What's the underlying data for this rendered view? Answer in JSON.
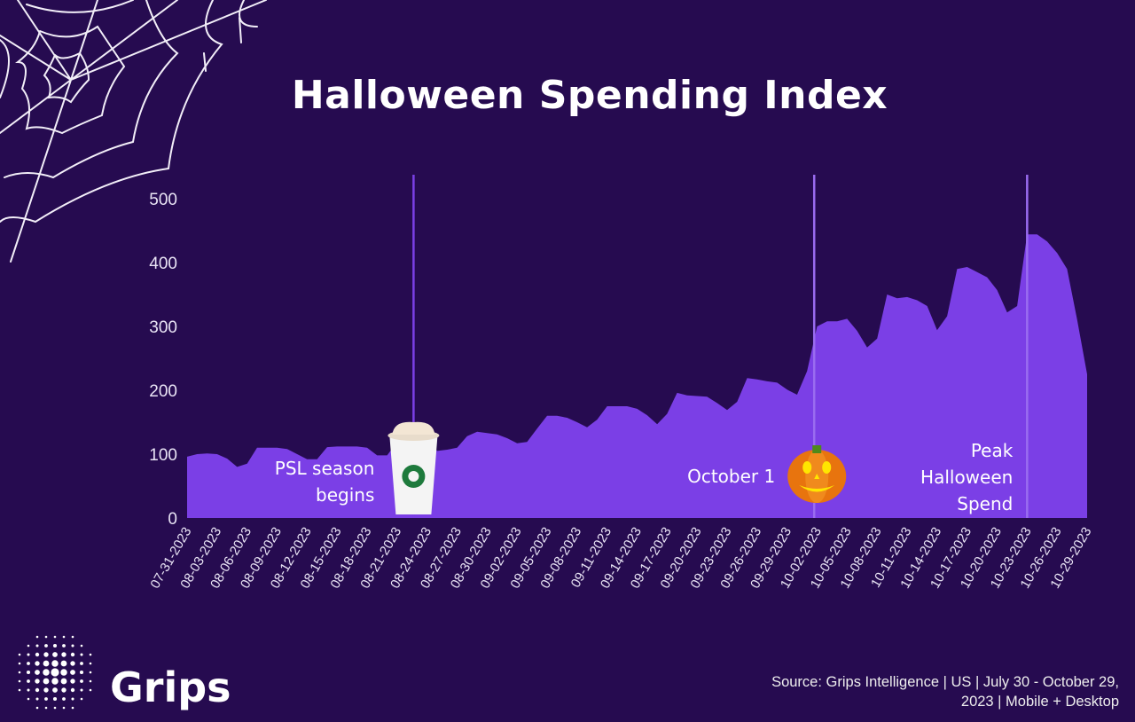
{
  "title": "Halloween Spending Index",
  "brand": "Grips",
  "source": "Source: Grips Intelligence | US | July 30 - October 29, 2023 | Mobile + Desktop",
  "colors": {
    "background": "#260b50",
    "area": "#7b3fe6",
    "marker_line": "#9a6cf0",
    "text": "#ffffff"
  },
  "chart_data": {
    "type": "area",
    "title": "Halloween Spending Index",
    "xlabel": "",
    "ylabel": "",
    "ylim": [
      0,
      540
    ],
    "yticks": [
      0,
      100,
      200,
      300,
      400,
      500
    ],
    "grid": false,
    "x": [
      "07-31-2023",
      "08-01-2023",
      "08-02-2023",
      "08-03-2023",
      "08-04-2023",
      "08-05-2023",
      "08-06-2023",
      "08-07-2023",
      "08-08-2023",
      "08-09-2023",
      "08-10-2023",
      "08-11-2023",
      "08-12-2023",
      "08-13-2023",
      "08-14-2023",
      "08-15-2023",
      "08-16-2023",
      "08-17-2023",
      "08-18-2023",
      "08-19-2023",
      "08-20-2023",
      "08-21-2023",
      "08-22-2023",
      "08-23-2023",
      "08-24-2023",
      "08-25-2023",
      "08-26-2023",
      "08-27-2023",
      "08-28-2023",
      "08-29-2023",
      "08-30-2023",
      "08-31-2023",
      "09-01-2023",
      "09-02-2023",
      "09-03-2023",
      "09-04-2023",
      "09-05-2023",
      "09-06-2023",
      "09-07-2023",
      "09-08-2023",
      "09-09-2023",
      "09-10-2023",
      "09-11-2023",
      "09-12-2023",
      "09-13-2023",
      "09-14-2023",
      "09-15-2023",
      "09-16-2023",
      "09-17-2023",
      "09-18-2023",
      "09-19-2023",
      "09-20-2023",
      "09-21-2023",
      "09-22-2023",
      "09-23-2023",
      "09-24-2023",
      "09-25-2023",
      "09-26-2023",
      "09-27-2023",
      "09-28-2023",
      "09-29-2023",
      "09-30-2023",
      "10-01-2023",
      "10-02-2023",
      "10-03-2023",
      "10-04-2023",
      "10-05-2023",
      "10-06-2023",
      "10-07-2023",
      "10-08-2023",
      "10-09-2023",
      "10-10-2023",
      "10-11-2023",
      "10-12-2023",
      "10-13-2023",
      "10-14-2023",
      "10-15-2023",
      "10-16-2023",
      "10-17-2023",
      "10-18-2023",
      "10-19-2023",
      "10-20-2023",
      "10-21-2023",
      "10-22-2023",
      "10-23-2023",
      "10-24-2023",
      "10-25-2023",
      "10-26-2023",
      "10-27-2023",
      "10-28-2023",
      "10-29-2023"
    ],
    "values": [
      96,
      100,
      101,
      100,
      93,
      80,
      85,
      110,
      110,
      110,
      108,
      100,
      92,
      92,
      111,
      112,
      112,
      112,
      110,
      98,
      98,
      119,
      140,
      150,
      130,
      105,
      107,
      110,
      128,
      135,
      133,
      131,
      125,
      117,
      119,
      140,
      160,
      160,
      157,
      150,
      142,
      154,
      175,
      175,
      175,
      171,
      161,
      147,
      163,
      196,
      192,
      191,
      190,
      180,
      169,
      182,
      219,
      217,
      214,
      212,
      201,
      193,
      230,
      300,
      308,
      308,
      312,
      293,
      267,
      281,
      350,
      344,
      346,
      341,
      332,
      294,
      316,
      390,
      393,
      385,
      377,
      357,
      322,
      332,
      444,
      444,
      433,
      415,
      390,
      311,
      225
    ],
    "xtick_labels": [
      "07-31-2023",
      "08-03-2023",
      "08-06-2023",
      "08-09-2023",
      "08-12-2023",
      "08-15-2023",
      "08-18-2023",
      "08-21-2023",
      "08-24-2023",
      "08-27-2023",
      "08-30-2023",
      "09-02-2023",
      "09-05-2023",
      "09-08-2023",
      "09-11-2023",
      "09-14-2023",
      "09-17-2023",
      "09-20-2023",
      "09-23-2023",
      "09-26-2023",
      "09-29-2023",
      "10-02-2023",
      "10-05-2023",
      "10-08-2023",
      "10-11-2023",
      "10-14-2023",
      "10-17-2023",
      "10-20-2023",
      "10-23-2023",
      "10-26-2023",
      "10-29-2023"
    ],
    "annotations": [
      {
        "date": "08-23-2023",
        "lines": [
          "PSL season",
          "begins"
        ],
        "icon": "pumpkin-spice-latte-cup-icon"
      },
      {
        "date": "10-01-2023",
        "lines": [
          "October 1"
        ],
        "icon": "jack-o-lantern-icon"
      },
      {
        "date": "10-23-2023",
        "lines": [
          "Peak",
          "Halloween",
          "Spend"
        ],
        "icon": ""
      }
    ]
  }
}
